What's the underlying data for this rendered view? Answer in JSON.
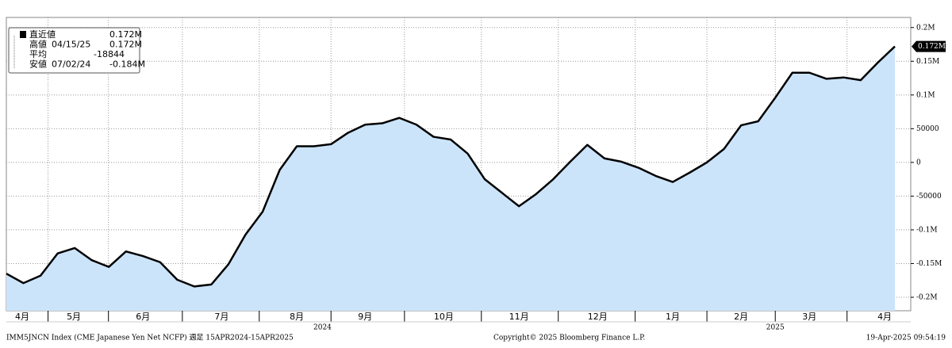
{
  "chart_data": {
    "type": "area",
    "values": [
      -165000,
      -179000,
      -168000,
      -135000,
      -127000,
      -145000,
      -155000,
      -132000,
      -139000,
      -148000,
      -174000,
      -184000,
      -181000,
      -151000,
      -107000,
      -73000,
      -11000,
      24000,
      24000,
      27000,
      44000,
      56000,
      58000,
      66000,
      56000,
      38000,
      34000,
      13000,
      -25000,
      -45000,
      -65000,
      -47000,
      -25000,
      1000,
      26000,
      6000,
      1000,
      -8000,
      -20000,
      -29000,
      -15000,
      0,
      20000,
      55000,
      61000,
      96000,
      133000,
      133000,
      124000,
      126000,
      122000,
      148000,
      172000
    ],
    "color": "#cce4fa",
    "line_color": "#000000",
    "ylim": [
      -220000,
      215000
    ],
    "yticks": [
      {
        "value": -200000,
        "label": "-0.2M"
      },
      {
        "value": -150000,
        "label": "-0.15M"
      },
      {
        "value": -100000,
        "label": "-0.1M"
      },
      -50000,
      0,
      50000,
      {
        "value": 100000,
        "label": "0.1M"
      },
      {
        "value": 150000,
        "label": "0.15M"
      },
      {
        "value": 200000,
        "label": "0.2M"
      }
    ],
    "xticks": [
      {
        "value": 0.93,
        "label": "4月"
      },
      {
        "value": 3.95,
        "label": "5月"
      },
      {
        "value": 8.0,
        "label": "6月"
      },
      {
        "value": 12.6,
        "label": "7月"
      },
      {
        "value": 17.0,
        "label": "8月"
      },
      {
        "value": 21.0,
        "label": "9月"
      },
      {
        "value": 25.6,
        "label": "10月"
      },
      {
        "value": 30.0,
        "label": "11月"
      },
      {
        "value": 34.6,
        "label": "12月"
      },
      {
        "value": 39.0,
        "label": "1月"
      },
      {
        "value": 43.0,
        "label": "2月"
      },
      {
        "value": 47.0,
        "label": "3月"
      },
      {
        "value": 51.4,
        "label": "4月"
      }
    ],
    "years": [
      {
        "value": 18.5,
        "label": "2024"
      },
      {
        "value": 45.0,
        "label": "2025"
      }
    ],
    "last_label": "0.172M",
    "grid": true,
    "legend": [
      [
        "直近値",
        "",
        "0.172M"
      ],
      [
        "高値",
        "04/15/25",
        "0.172M"
      ],
      [
        "平均",
        "",
        "-18844"
      ],
      [
        "安値",
        "07/02/24",
        "-0.184M"
      ]
    ],
    "footer": {
      "left": "IMM5JNCN Index (CME Japanese Yen Net NCFP)  週足 15APR2024-15APR2025",
      "center": "Copyright© 2025 Bloomberg Finance L.P.",
      "right": "19-Apr-2025 09:54:19"
    }
  }
}
